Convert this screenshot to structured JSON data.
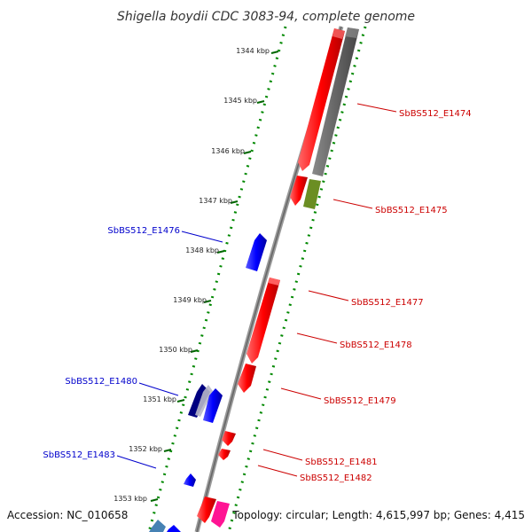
{
  "title": "Shigella boydii CDC 3083-94, complete genome",
  "footer": {
    "accession": "Accession: NC_010658",
    "summary": "Topology: circular; Length: 4,615,997 bp; Genes: 4,415"
  },
  "ticks": [
    "1344 kbp",
    "1345 kbp",
    "1346 kbp",
    "1347 kbp",
    "1348 kbp",
    "1349 kbp",
    "1350 kbp",
    "1351 kbp",
    "1352 kbp",
    "1353 kbp"
  ],
  "genes": [
    {
      "label": "SbBS512_E1474",
      "strand": "forward",
      "color": "#ff0000"
    },
    {
      "label": "SbBS512_E1475",
      "strand": "forward",
      "color": "#ff0000"
    },
    {
      "label": "SbBS512_E1476",
      "strand": "reverse",
      "color": "#0000ff"
    },
    {
      "label": "SbBS512_E1477",
      "strand": "forward",
      "color": "#ff0000"
    },
    {
      "label": "SbBS512_E1478",
      "strand": "forward",
      "color": "#ff0000"
    },
    {
      "label": "SbBS512_E1479",
      "strand": "forward",
      "color": "#ff0000"
    },
    {
      "label": "SbBS512_E1480",
      "strand": "reverse",
      "color": "#0000ff"
    },
    {
      "label": "SbBS512_E1481",
      "strand": "forward",
      "color": "#ff0000"
    },
    {
      "label": "SbBS512_E1482",
      "strand": "forward",
      "color": "#ff0000"
    },
    {
      "label": "SbBS512_E1483",
      "strand": "reverse",
      "color": "#0000ff"
    }
  ],
  "colors": {
    "forward_label": "#cc0000",
    "reverse_label": "#0000cc",
    "backbone": "#888888",
    "ruler_dots": "#008800",
    "gc_track": "#666666",
    "pseudo_gene": "#6b8e23",
    "dark_gene": "#000080",
    "pink_gene": "#ff1493",
    "steel_gene": "#4682b4"
  }
}
